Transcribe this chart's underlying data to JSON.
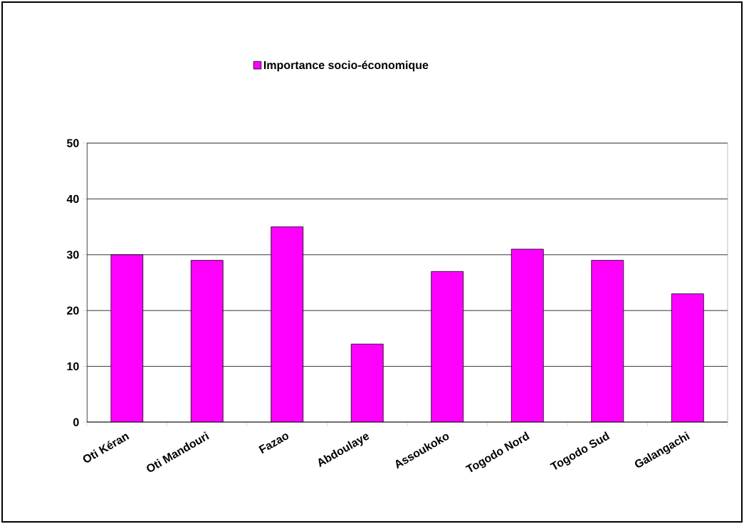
{
  "chart_data": {
    "type": "bar",
    "categories": [
      "Oti Kéran",
      "Oti Mandouri",
      "Fazao",
      "Abdoulaye",
      "Assoukoko",
      "Togodo Nord",
      "Togodo Sud",
      "Galangachi"
    ],
    "series": [
      {
        "name": "Importance socio-économique",
        "color": "#ff00ff",
        "values": [
          30,
          29,
          35,
          14,
          27,
          31,
          29,
          23
        ]
      }
    ],
    "ylim": [
      0,
      50
    ],
    "yticks": [
      0,
      10,
      20,
      30,
      40,
      50
    ],
    "grid": "y",
    "legend": "top"
  }
}
